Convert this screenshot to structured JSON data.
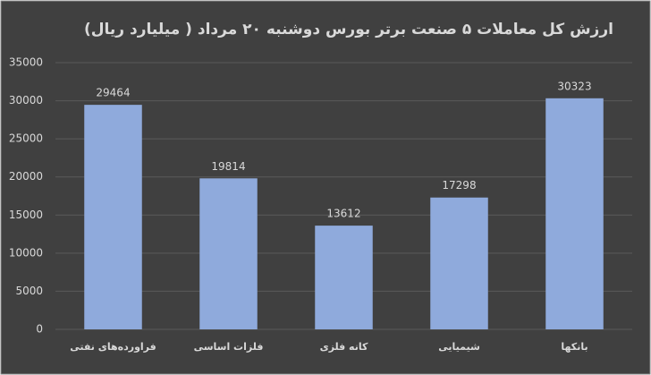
{
  "chart_data": {
    "type": "bar",
    "title": "ارزش کل معاملات ۵ صنعت برتر بورس دوشنبه ۲۰ مرداد ( میلیارد ریال)",
    "categories": [
      "فراورده‌های نفتی",
      "فلزات اساسی",
      "کانه فلزی",
      "شیمیایی",
      "بانکها"
    ],
    "values": [
      29464,
      19814,
      13612,
      17298,
      30323
    ],
    "color": "#8faadc",
    "ylim": [
      0,
      35000
    ],
    "yticks": [
      0,
      5000,
      10000,
      15000,
      20000,
      25000,
      30000,
      35000
    ],
    "grid": true
  }
}
